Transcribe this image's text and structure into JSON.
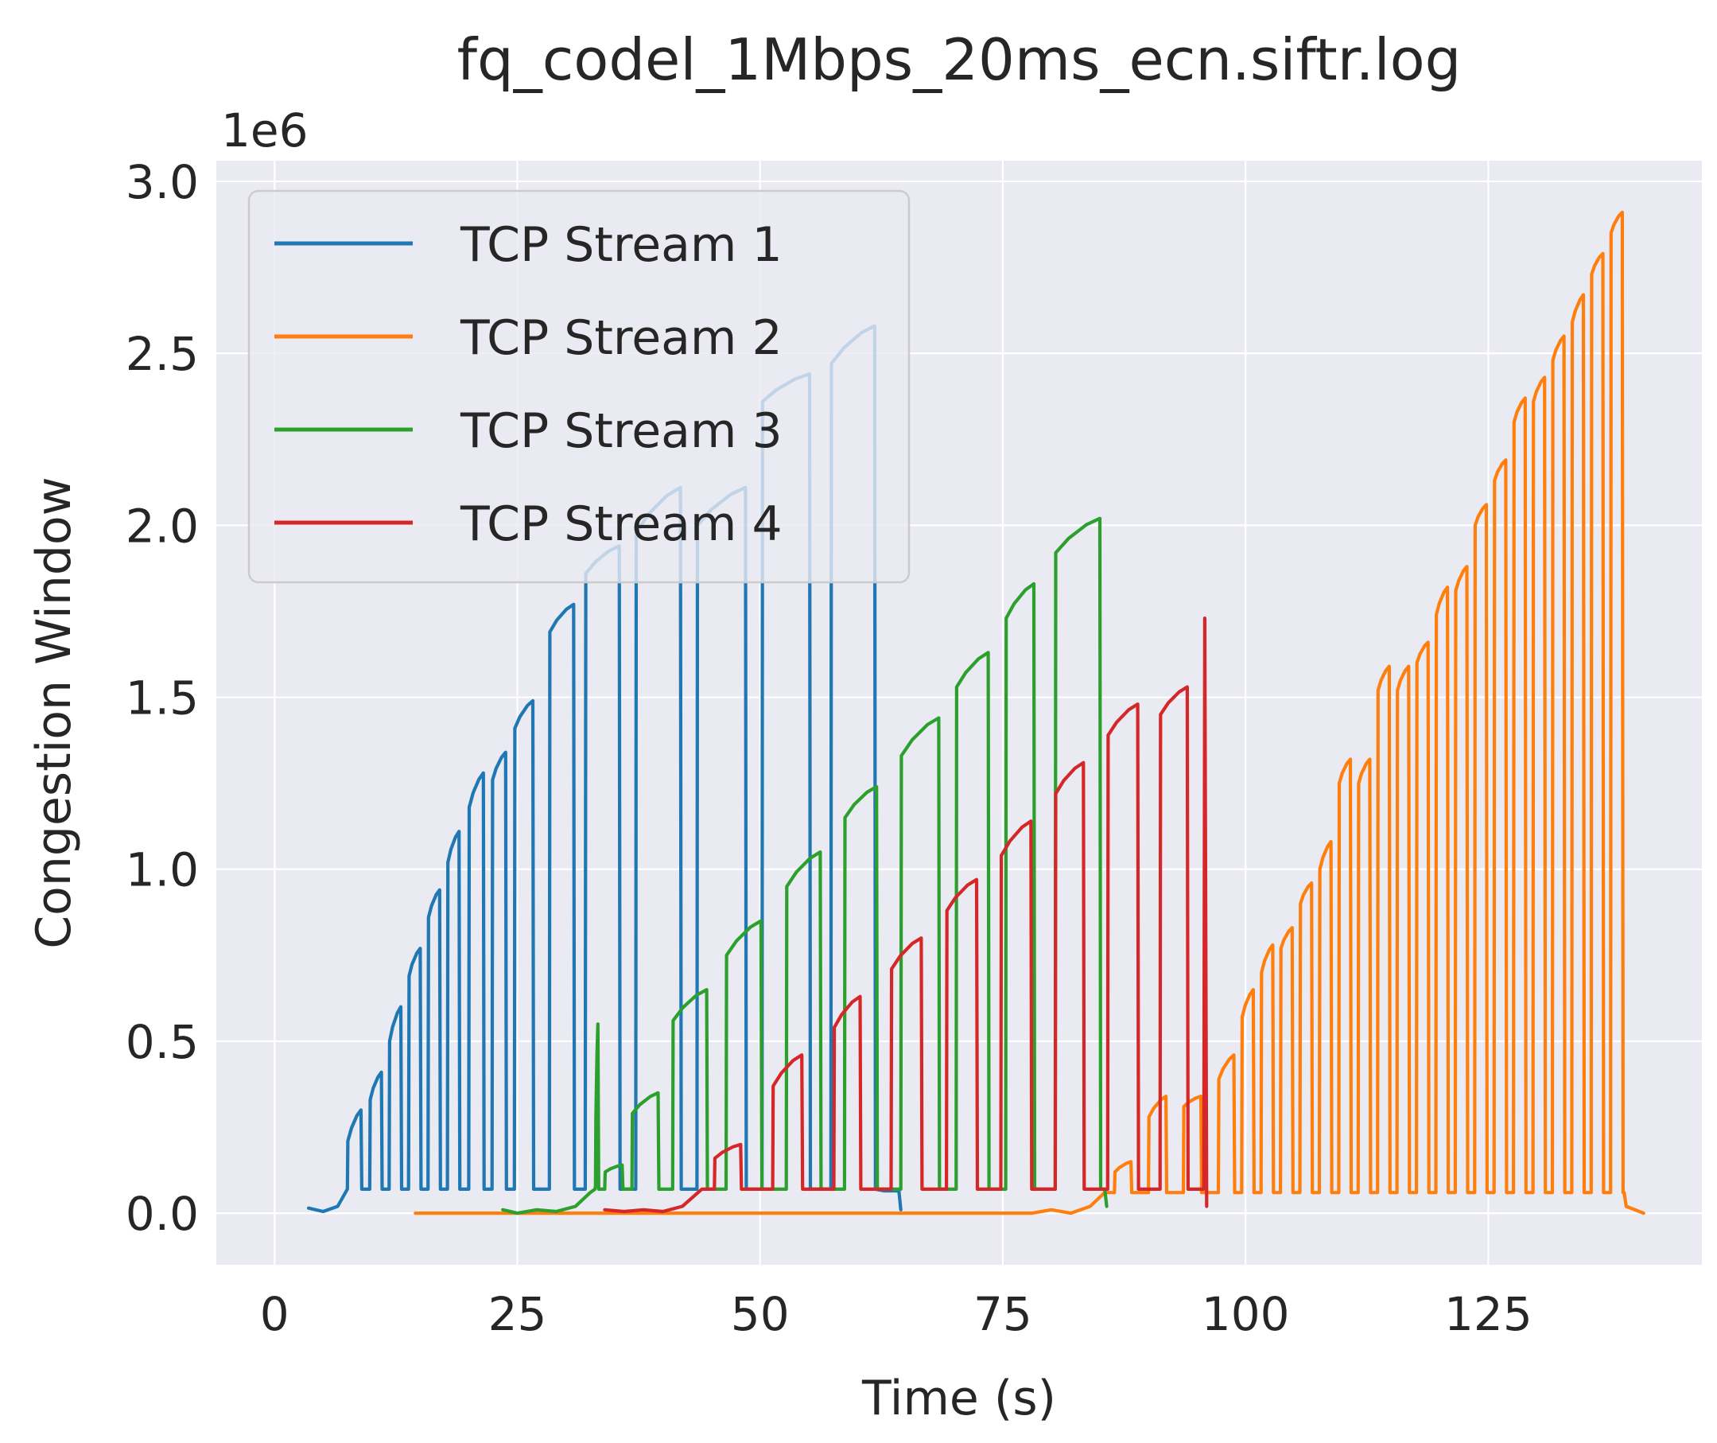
{
  "chart_data": {
    "type": "line",
    "title": "fq_codel_1Mbps_20ms_ecn.siftr.log",
    "xlabel": "Time (s)",
    "ylabel": "Congestion Window",
    "offset_label": "1e6",
    "xlim": [
      -6,
      147
    ],
    "ylim": [
      -0.15,
      3.06
    ],
    "y_scale_factor": 1000000,
    "x_ticks": [
      0,
      25,
      50,
      75,
      100,
      125
    ],
    "x_tick_labels": [
      "0",
      "25",
      "50",
      "75",
      "100",
      "125"
    ],
    "y_ticks": [
      0.0,
      0.5,
      1.0,
      1.5,
      2.0,
      2.5,
      3.0
    ],
    "y_tick_labels": [
      "0.0",
      "0.5",
      "1.0",
      "1.5",
      "2.0",
      "2.5",
      "3.0"
    ],
    "grid": true,
    "legend_position": "upper-left",
    "series": [
      {
        "name": "TCP Stream 1",
        "color": "#1f77b4",
        "start": [
          [
            3.5,
            0.015
          ],
          [
            5.0,
            0.005
          ],
          [
            6.5,
            0.02
          ]
        ],
        "trough": 0.07,
        "cycles": [
          [
            7.5,
            8.9,
            0.21,
            0.3
          ],
          [
            9.8,
            11.0,
            0.33,
            0.41
          ],
          [
            11.8,
            13.0,
            0.5,
            0.6
          ],
          [
            13.8,
            15.0,
            0.69,
            0.77
          ],
          [
            15.8,
            17.0,
            0.86,
            0.94
          ],
          [
            17.8,
            19.0,
            1.02,
            1.11
          ],
          [
            20.0,
            21.5,
            1.18,
            1.28
          ],
          [
            22.4,
            23.8,
            1.26,
            1.34
          ],
          [
            24.7,
            26.6,
            1.41,
            1.49
          ],
          [
            28.3,
            30.8,
            1.69,
            1.77
          ],
          [
            32.0,
            35.5,
            1.86,
            1.94
          ],
          [
            37.2,
            41.8,
            1.98,
            2.11
          ],
          [
            43.5,
            48.5,
            2.0,
            2.11
          ],
          [
            50.2,
            55.1,
            2.36,
            2.44
          ],
          [
            57.3,
            61.8,
            2.47,
            2.58
          ]
        ],
        "end": [
          [
            62.8,
            0.065
          ],
          [
            64.3,
            0.065
          ],
          [
            64.5,
            0.01
          ]
        ]
      },
      {
        "name": "TCP Stream 2",
        "color": "#ff7f0e",
        "start": [
          [
            14.5,
            0.0
          ],
          [
            78.0,
            0.0
          ],
          [
            80.0,
            0.01
          ],
          [
            82.0,
            0.0
          ],
          [
            84.0,
            0.02
          ],
          [
            85.5,
            0.06
          ]
        ],
        "trough": 0.06,
        "cycles": [
          [
            86.5,
            88.2,
            0.12,
            0.15
          ],
          [
            90.0,
            91.8,
            0.28,
            0.34
          ],
          [
            93.6,
            95.4,
            0.31,
            0.34
          ],
          [
            97.2,
            98.8,
            0.39,
            0.46
          ],
          [
            99.6,
            100.8,
            0.57,
            0.65
          ],
          [
            101.6,
            102.8,
            0.7,
            0.78
          ],
          [
            103.6,
            104.8,
            0.77,
            0.83
          ],
          [
            105.6,
            106.8,
            0.9,
            0.96
          ],
          [
            107.6,
            108.8,
            1.0,
            1.08
          ],
          [
            109.6,
            110.8,
            1.25,
            1.32
          ],
          [
            111.6,
            112.8,
            1.25,
            1.32
          ],
          [
            113.6,
            114.8,
            1.52,
            1.59
          ],
          [
            115.6,
            116.8,
            1.52,
            1.59
          ],
          [
            117.6,
            118.8,
            1.6,
            1.66
          ],
          [
            119.6,
            120.8,
            1.74,
            1.82
          ],
          [
            121.6,
            122.8,
            1.81,
            1.88
          ],
          [
            123.6,
            124.8,
            2.0,
            2.06
          ],
          [
            125.6,
            126.8,
            2.13,
            2.19
          ],
          [
            127.6,
            128.8,
            2.3,
            2.37
          ],
          [
            129.6,
            130.8,
            2.36,
            2.43
          ],
          [
            131.6,
            132.8,
            2.48,
            2.55
          ],
          [
            133.6,
            134.8,
            2.59,
            2.67
          ],
          [
            135.6,
            136.8,
            2.73,
            2.79
          ],
          [
            137.6,
            138.8,
            2.85,
            2.91
          ]
        ],
        "end": [
          [
            139.0,
            0.06
          ],
          [
            139.2,
            0.02
          ],
          [
            141.0,
            0.0
          ]
        ]
      },
      {
        "name": "TCP Stream 3",
        "color": "#2ca02c",
        "start": [
          [
            23.5,
            0.01
          ],
          [
            25.0,
            0.0
          ],
          [
            27.0,
            0.01
          ],
          [
            29.0,
            0.005
          ],
          [
            31.0,
            0.02
          ],
          [
            32.5,
            0.06
          ]
        ],
        "trough": 0.07,
        "cycles": [
          [
            33.0,
            33.3,
            0.08,
            0.55
          ],
          [
            34.0,
            35.8,
            0.12,
            0.14
          ],
          [
            36.8,
            39.5,
            0.29,
            0.35
          ],
          [
            41.0,
            44.5,
            0.56,
            0.65
          ],
          [
            46.5,
            50.1,
            0.75,
            0.85
          ],
          [
            52.7,
            56.2,
            0.95,
            1.05
          ],
          [
            58.7,
            62.0,
            1.15,
            1.24
          ],
          [
            64.5,
            68.4,
            1.33,
            1.44
          ],
          [
            70.2,
            73.5,
            1.53,
            1.63
          ],
          [
            75.3,
            78.2,
            1.73,
            1.83
          ],
          [
            80.4,
            85.0,
            1.92,
            2.02
          ]
        ],
        "end": [
          [
            85.5,
            0.07
          ],
          [
            85.7,
            0.02
          ]
        ]
      },
      {
        "name": "TCP Stream 4",
        "color": "#d62728",
        "start": [
          [
            34.0,
            0.01
          ],
          [
            36.0,
            0.005
          ],
          [
            38.0,
            0.01
          ],
          [
            40.0,
            0.005
          ],
          [
            42.0,
            0.02
          ],
          [
            44.0,
            0.07
          ]
        ],
        "trough": 0.07,
        "cycles": [
          [
            45.3,
            48.0,
            0.16,
            0.2
          ],
          [
            51.3,
            54.3,
            0.37,
            0.46
          ],
          [
            57.6,
            60.3,
            0.54,
            0.63
          ],
          [
            63.5,
            66.6,
            0.71,
            0.8
          ],
          [
            69.2,
            72.3,
            0.88,
            0.97
          ],
          [
            74.8,
            77.9,
            1.04,
            1.14
          ],
          [
            80.4,
            83.3,
            1.22,
            1.31
          ],
          [
            85.8,
            88.9,
            1.39,
            1.48
          ],
          [
            91.2,
            94.0,
            1.45,
            1.53
          ]
        ],
        "end": [
          [
            95.7,
            0.07
          ],
          [
            95.8,
            1.73
          ],
          [
            96.0,
            0.02
          ]
        ]
      }
    ]
  }
}
